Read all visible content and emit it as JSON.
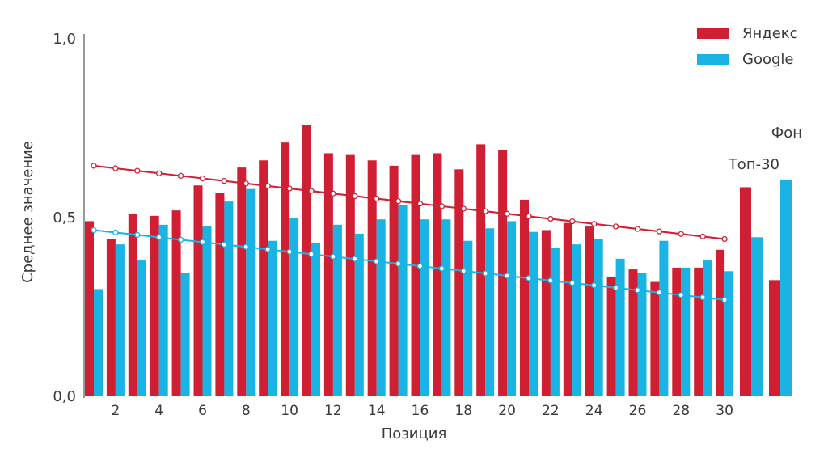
{
  "chart_data": {
    "type": "bar",
    "xlabel": "Позиция",
    "ylabel": "Среднее значение",
    "ylim": [
      0,
      1
    ],
    "yticks": [
      "0,0",
      "0,5",
      "1,0"
    ],
    "x_tick_labels": [
      "2",
      "4",
      "6",
      "8",
      "10",
      "12",
      "14",
      "16",
      "18",
      "20",
      "22",
      "24",
      "26",
      "28",
      "30"
    ],
    "positions": [
      1,
      2,
      3,
      4,
      5,
      6,
      7,
      8,
      9,
      10,
      11,
      12,
      13,
      14,
      15,
      16,
      17,
      18,
      19,
      20,
      21,
      22,
      23,
      24,
      25,
      26,
      27,
      28,
      29,
      30
    ],
    "series": [
      {
        "name": "Яндекс",
        "color": "#d01f33",
        "values": [
          0.49,
          0.44,
          0.51,
          0.505,
          0.52,
          0.59,
          0.57,
          0.64,
          0.66,
          0.71,
          0.76,
          0.68,
          0.675,
          0.66,
          0.645,
          0.675,
          0.68,
          0.635,
          0.705,
          0.69,
          0.55,
          0.465,
          0.485,
          0.475,
          0.335,
          0.355,
          0.32,
          0.36,
          0.36,
          0.41
        ],
        "trend": [
          0.645,
          0.44
        ]
      },
      {
        "name": "Google",
        "color": "#19b4e4",
        "values": [
          0.3,
          0.425,
          0.38,
          0.48,
          0.345,
          0.475,
          0.545,
          0.58,
          0.435,
          0.5,
          0.43,
          0.48,
          0.455,
          0.495,
          0.535,
          0.495,
          0.495,
          0.435,
          0.47,
          0.49,
          0.46,
          0.415,
          0.425,
          0.44,
          0.385,
          0.345,
          0.435,
          0.36,
          0.38,
          0.35
        ],
        "trend": [
          0.465,
          0.27
        ]
      }
    ],
    "background": {
      "label": "Фон",
      "sublabel": "Топ-30",
      "yandex": [
        0.585,
        0.325
      ],
      "google": [
        0.445,
        0.605
      ]
    }
  }
}
